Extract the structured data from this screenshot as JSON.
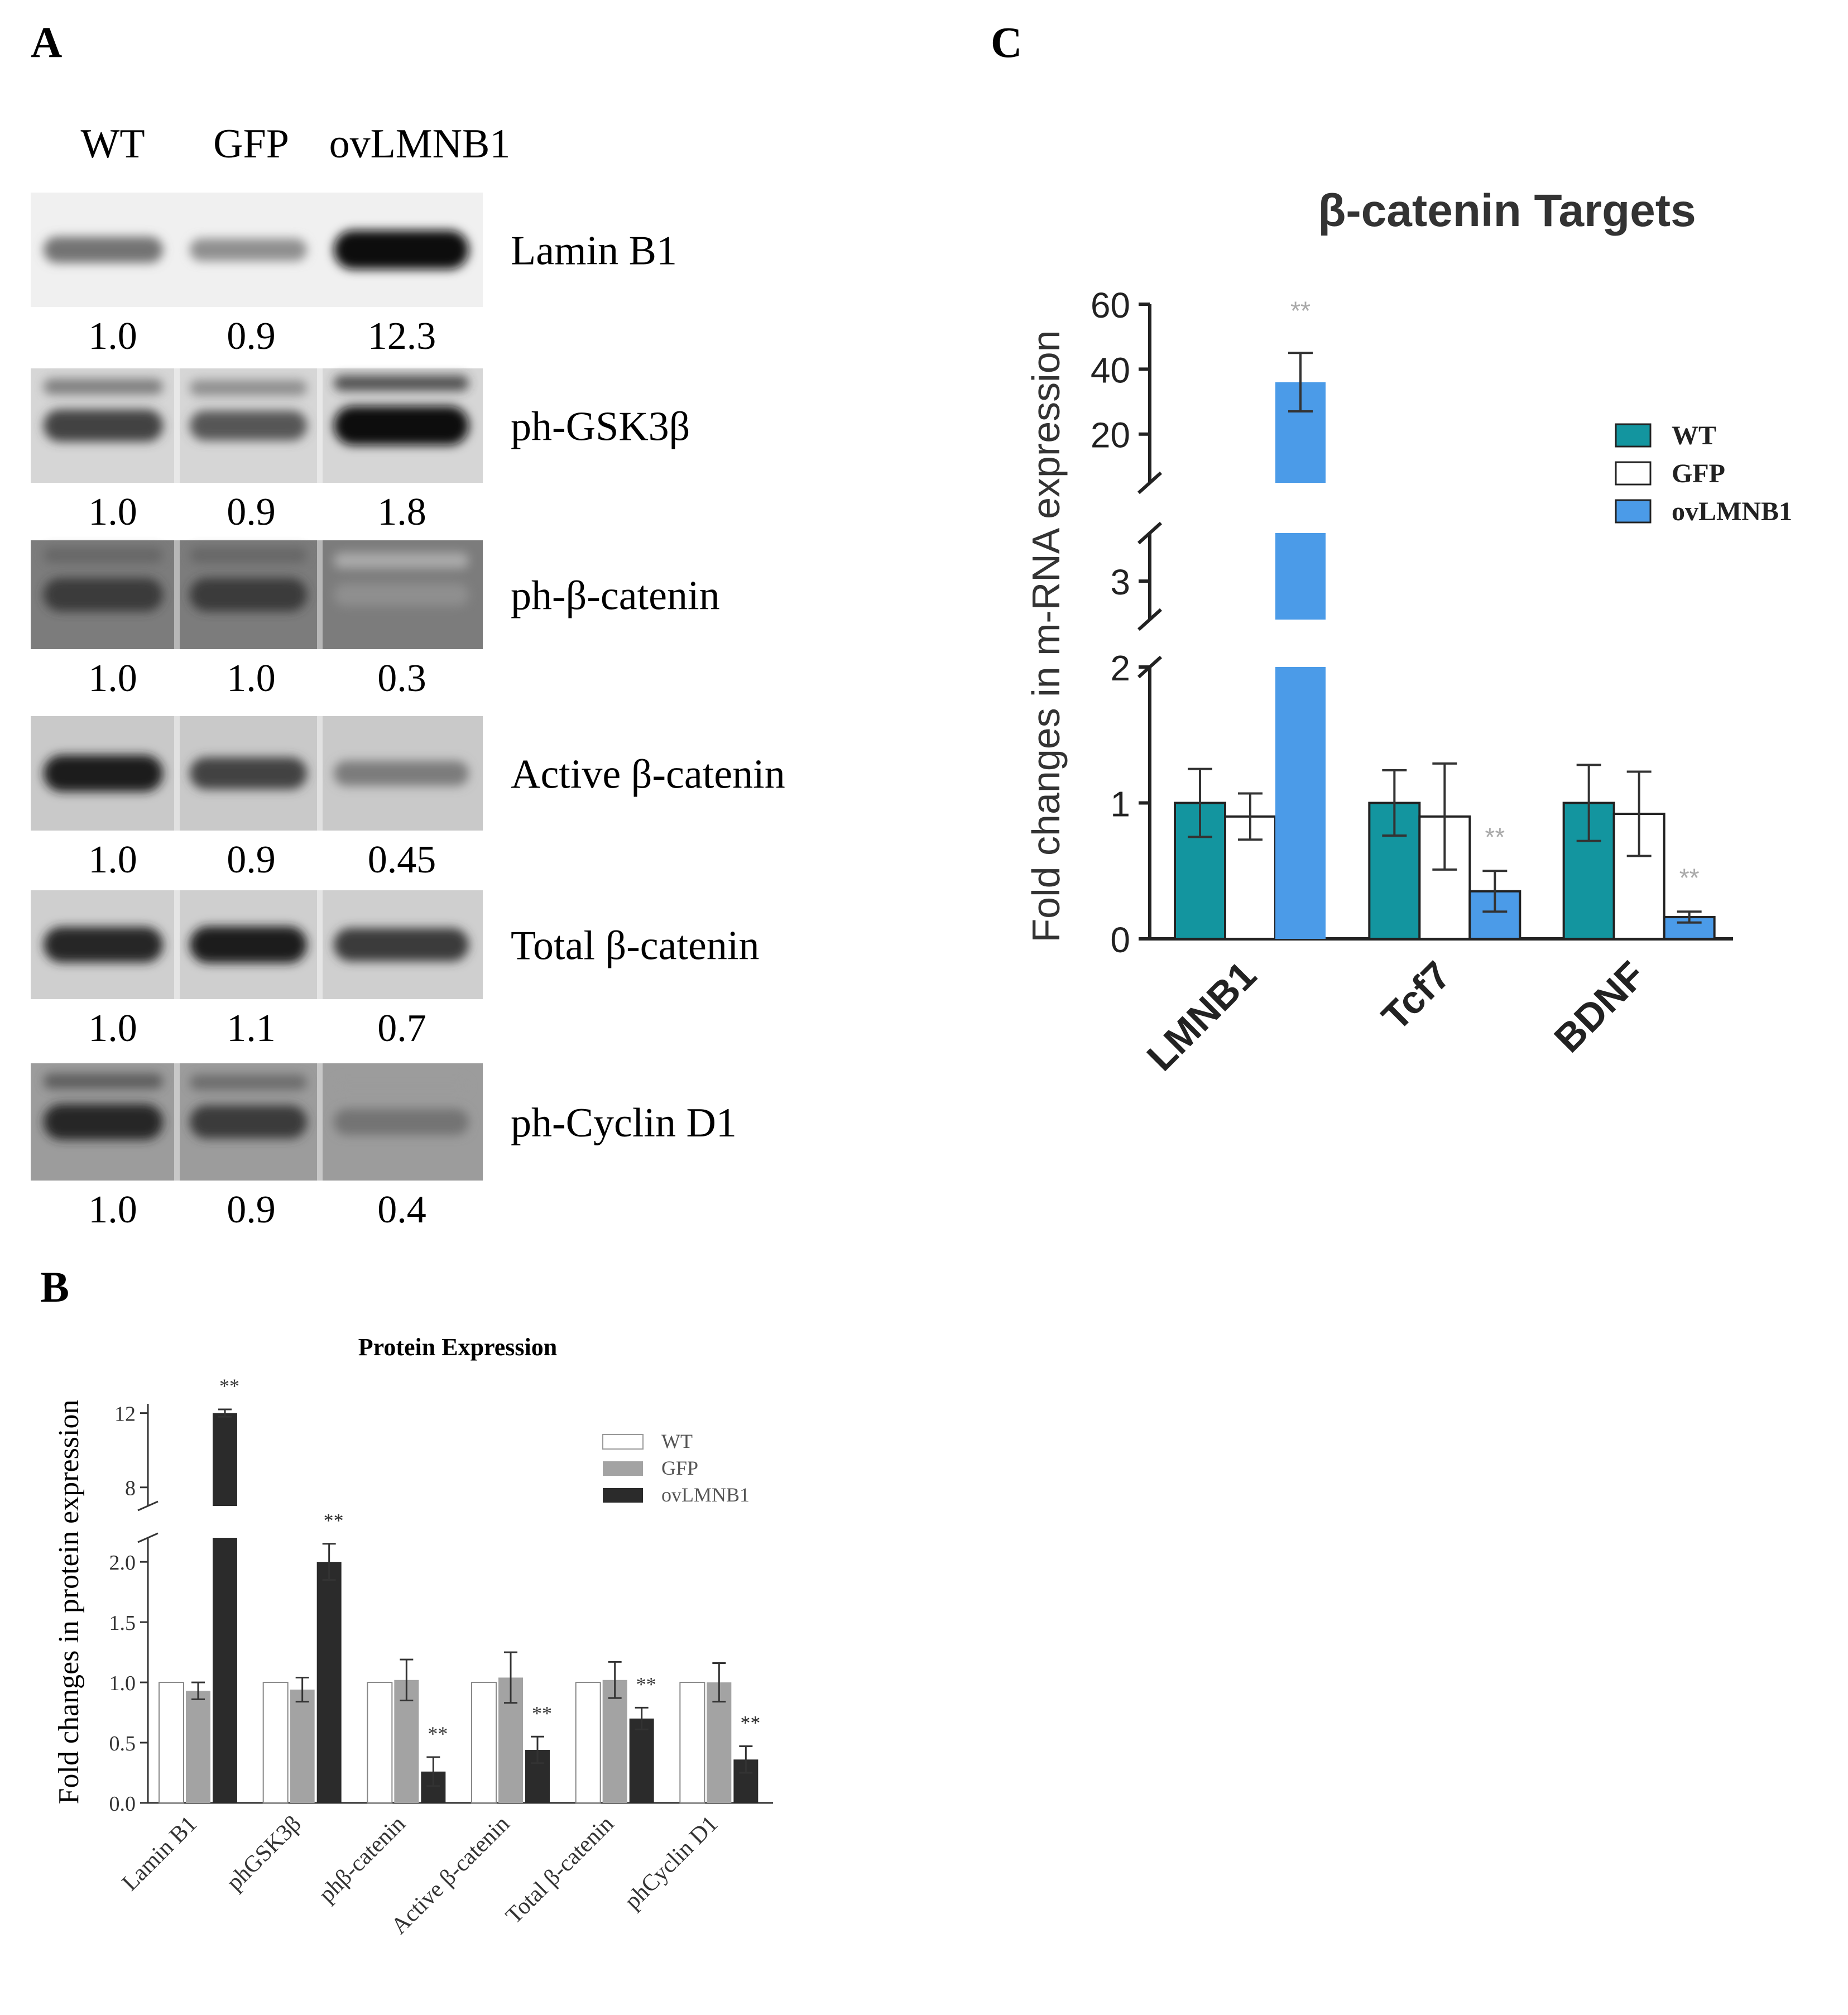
{
  "panels": {
    "a": "A",
    "b": "B",
    "c": "C"
  },
  "blot": {
    "lanes": [
      "WT",
      "GFP",
      "ovLMNB1"
    ],
    "rows": [
      {
        "label": "Lamin B1",
        "values": [
          "1.0",
          "0.9",
          "12.3"
        ],
        "intensity": [
          0.45,
          0.3,
          1.0
        ]
      },
      {
        "label": "ph-GSK3β",
        "values": [
          "1.0",
          "0.9",
          "1.8"
        ],
        "intensity": [
          0.7,
          0.6,
          1.0
        ]
      },
      {
        "label": "ph-β-catenin",
        "values": [
          "1.0",
          "1.0",
          "0.3"
        ],
        "intensity": [
          0.75,
          0.75,
          0.3
        ]
      },
      {
        "label": "Active β-catenin",
        "values": [
          "1.0",
          "0.9",
          "0.45"
        ],
        "intensity": [
          0.9,
          0.7,
          0.4
        ]
      },
      {
        "label": "Total β-catenin",
        "values": [
          "1.0",
          "1.1",
          "0.7"
        ],
        "intensity": [
          0.85,
          0.9,
          0.75
        ]
      },
      {
        "label": "ph-Cyclin D1",
        "values": [
          "1.0",
          "0.9",
          "0.4"
        ],
        "intensity": [
          0.85,
          0.75,
          0.45
        ]
      }
    ]
  },
  "chart_data": [
    {
      "type": "bar",
      "title": "Protein Expression",
      "ylabel": "Fold changes in protein expression",
      "xlabel": "",
      "y_axis_break": {
        "lower": [
          0,
          2.2
        ],
        "upper": [
          7,
          12.5
        ]
      },
      "yticks_lower": [
        "0.0",
        "0.5",
        "1.0",
        "1.5",
        "2.0"
      ],
      "yticks_upper": [
        "8",
        "12"
      ],
      "categories": [
        "Lamin B1",
        "phGSK3β",
        "phβ-catenin",
        "Active β-catenin",
        "Total β-catenin",
        "phCyclin D1"
      ],
      "series": [
        {
          "name": "WT",
          "color": "#ffffff",
          "values": [
            1.0,
            1.0,
            1.0,
            1.0,
            1.0,
            1.0
          ],
          "errors": [
            0,
            0,
            0,
            0,
            0,
            0
          ]
        },
        {
          "name": "GFP",
          "color": "#a3a3a3",
          "values": [
            0.93,
            0.94,
            1.02,
            1.04,
            1.02,
            1.0
          ],
          "errors": [
            0.07,
            0.1,
            0.17,
            0.21,
            0.15,
            0.16
          ]
        },
        {
          "name": "ovLMNB1",
          "color": "#2b2b2b",
          "values": [
            12.0,
            2.0,
            0.26,
            0.44,
            0.7,
            0.36
          ],
          "errors": [
            0.2,
            0.15,
            0.12,
            0.11,
            0.09,
            0.11
          ]
        }
      ],
      "significance": [
        "**",
        "**",
        "**",
        "**",
        "**",
        "**"
      ],
      "legend_position": "top-right"
    },
    {
      "type": "bar",
      "title": "β-catenin Targets",
      "ylabel": "Fold changes in m-RNA expression",
      "xlabel": "",
      "y_axis_break": {
        "lower": [
          0,
          2
        ],
        "middle": [
          2.6,
          3.5
        ],
        "upper": [
          5,
          60
        ]
      },
      "yticks_lower": [
        "0",
        "1",
        "2"
      ],
      "yticks_middle": [
        "3"
      ],
      "yticks_upper": [
        "20",
        "40",
        "60"
      ],
      "categories": [
        "LMNB1",
        "Tcf7",
        "BDNF"
      ],
      "series": [
        {
          "name": "WT",
          "color": "#13959f",
          "values": [
            1.0,
            1.0,
            1.0
          ],
          "errors": [
            0.25,
            0.24,
            0.28
          ]
        },
        {
          "name": "GFP",
          "color": "#ffffff",
          "values": [
            0.9,
            0.9,
            0.92
          ],
          "errors": [
            0.17,
            0.39,
            0.31
          ]
        },
        {
          "name": "ovLMNB1",
          "color": "#4b9be8",
          "values": [
            36.0,
            0.35,
            0.16
          ],
          "errors": [
            9.0,
            0.15,
            0.04
          ]
        }
      ],
      "significance": [
        "**",
        "**",
        "**"
      ],
      "legend_position": "top-right"
    }
  ]
}
